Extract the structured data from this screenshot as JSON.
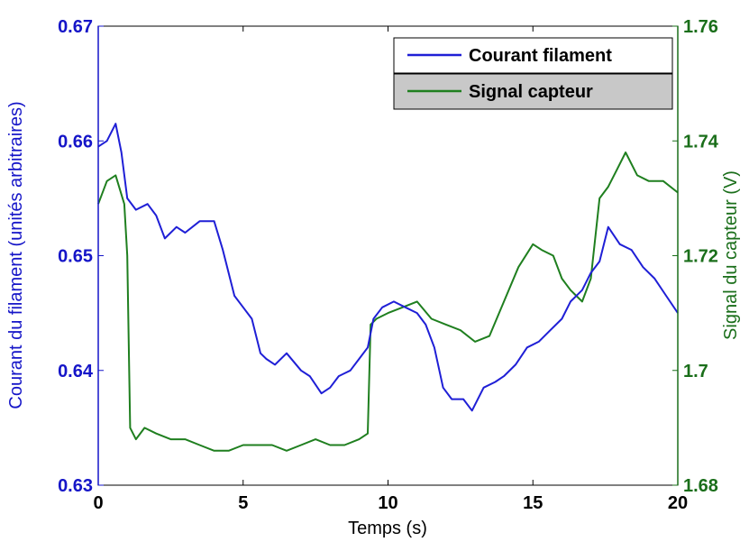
{
  "chart_data": {
    "type": "line",
    "xlabel": "Temps (s)",
    "ylabel_left": "Courant du filament (unités arbitraires)",
    "ylabel_right": "Signal du capteur (V)",
    "xlim": [
      0,
      20
    ],
    "ylim_left": [
      0.63,
      0.67
    ],
    "ylim_right": [
      1.68,
      1.76
    ],
    "x_ticks": [
      "0",
      "5",
      "10",
      "15",
      "20"
    ],
    "y_left_ticks": [
      "0.63",
      "0.64",
      "0.65",
      "0.66",
      "0.67"
    ],
    "y_right_ticks": [
      "1.68",
      "1.7",
      "1.72",
      "1.74",
      "1.76"
    ],
    "grid": false,
    "legend_position": "top-right",
    "colors": {
      "left_axis": "#1515c8",
      "right_axis": "#1a6e1a",
      "series_blue": "#1f1fd6",
      "series_green": "#1f7f1f",
      "legend_highlight": "#c8c8c8"
    },
    "series": [
      {
        "name": "Courant filament",
        "axis": "left",
        "color": "#1f1fd6",
        "x": [
          0,
          0.3,
          0.6,
          0.8,
          1.0,
          1.3,
          1.7,
          2.0,
          2.3,
          2.7,
          3.0,
          3.5,
          4.0,
          4.3,
          4.7,
          5.0,
          5.3,
          5.6,
          5.8,
          6.1,
          6.5,
          7.0,
          7.3,
          7.7,
          8.0,
          8.3,
          8.7,
          9.0,
          9.3,
          9.5,
          9.8,
          10.2,
          10.6,
          11.0,
          11.3,
          11.6,
          11.9,
          12.2,
          12.6,
          12.9,
          13.3,
          13.7,
          14.0,
          14.4,
          14.8,
          15.2,
          15.6,
          16.0,
          16.3,
          16.7,
          17.0,
          17.3,
          17.6,
          18.0,
          18.4,
          18.8,
          19.2,
          19.6,
          20.0
        ],
        "y": [
          0.6595,
          0.66,
          0.6615,
          0.659,
          0.655,
          0.654,
          0.6545,
          0.6535,
          0.6515,
          0.6525,
          0.652,
          0.653,
          0.653,
          0.6505,
          0.6465,
          0.6455,
          0.6445,
          0.6415,
          0.641,
          0.6405,
          0.6415,
          0.64,
          0.6395,
          0.638,
          0.6385,
          0.6395,
          0.64,
          0.641,
          0.642,
          0.6445,
          0.6455,
          0.646,
          0.6455,
          0.645,
          0.644,
          0.642,
          0.6385,
          0.6375,
          0.6375,
          0.6365,
          0.6385,
          0.639,
          0.6395,
          0.6405,
          0.642,
          0.6425,
          0.6435,
          0.6445,
          0.646,
          0.647,
          0.6485,
          0.6495,
          0.6525,
          0.651,
          0.6505,
          0.649,
          0.648,
          0.6465,
          0.645
        ]
      },
      {
        "name": "Signal capteur",
        "axis": "right",
        "color": "#1f7f1f",
        "x": [
          0,
          0.3,
          0.6,
          0.9,
          1.0,
          1.1,
          1.3,
          1.6,
          2.0,
          2.5,
          3.0,
          3.5,
          4.0,
          4.5,
          5.0,
          5.5,
          6.0,
          6.5,
          7.0,
          7.5,
          8.0,
          8.5,
          9.0,
          9.3,
          9.4,
          9.6,
          10.0,
          10.5,
          11.0,
          11.5,
          12.0,
          12.5,
          13.0,
          13.5,
          14.0,
          14.5,
          15.0,
          15.3,
          15.7,
          16.0,
          16.3,
          16.7,
          17.0,
          17.3,
          17.6,
          17.9,
          18.2,
          18.6,
          19.0,
          19.5,
          20.0
        ],
        "y": [
          1.729,
          1.733,
          1.734,
          1.729,
          1.72,
          1.69,
          1.688,
          1.69,
          1.689,
          1.688,
          1.688,
          1.687,
          1.686,
          1.686,
          1.687,
          1.687,
          1.687,
          1.686,
          1.687,
          1.688,
          1.687,
          1.687,
          1.688,
          1.689,
          1.708,
          1.709,
          1.71,
          1.711,
          1.712,
          1.709,
          1.708,
          1.707,
          1.705,
          1.706,
          1.712,
          1.718,
          1.722,
          1.721,
          1.72,
          1.716,
          1.714,
          1.712,
          1.716,
          1.73,
          1.732,
          1.735,
          1.738,
          1.734,
          1.733,
          1.733,
          1.731
        ]
      }
    ]
  }
}
